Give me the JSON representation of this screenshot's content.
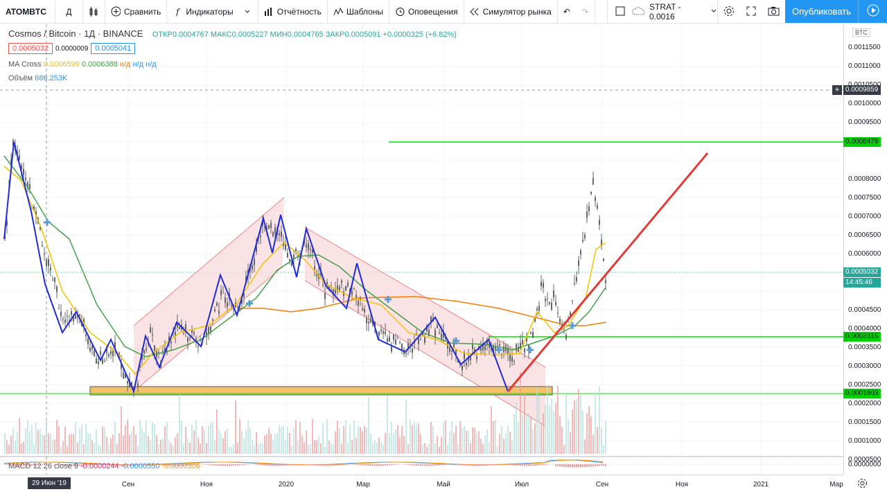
{
  "toolbar": {
    "symbol": "ATOMBTC",
    "interval": "Д",
    "compare": "Сравнить",
    "indicators": "Индикаторы",
    "financials": "Отчётность",
    "templates": "Шаблоны",
    "alerts": "Оповещения",
    "replay": "Симулятор рынка",
    "strategy": "STRAT - 0.0016",
    "publish": "Опубликовать"
  },
  "legend": {
    "title": "Cosmos / Bitcoin · 1Д · BINANCE",
    "ohlc": "ОТКР0.0004767 МАКС0.0005227 МИН0.0004765 ЗАКР0.0005091 +0.0000325 (+6.82%)",
    "bid": "0.0005032",
    "spread": "0.0000009",
    "ask": "0.0005041",
    "ma_name": "MA Cross",
    "ma_fast": "0.0006599",
    "ma_slow": "0.0006388",
    "na1": "н/д",
    "na2": "н/д",
    "na3": "н/д",
    "volume_name": "Объём",
    "volume_value": "686.253K",
    "macd_name": "MACD 12 26 close 9",
    "macd_hist": "-0.0000244",
    "macd_line": "-0.0000550",
    "macd_signal": "-0.0000306"
  },
  "price_scale": {
    "currency": "BTC",
    "ticks": [
      "0.0011500",
      "0.0011000",
      "0.0010500",
      "0.0010000",
      "0.0009500",
      "0.0009000",
      "0.0008000",
      "0.0007500",
      "0.0007000",
      "0.0006500",
      "0.0006000",
      "0.0005500",
      "0.0004500",
      "0.0004000",
      "0.0003500",
      "0.0003000",
      "0.0002500",
      "0.0002000",
      "0.0001500",
      "0.0001000",
      "0.0000500",
      "0.0000000"
    ],
    "crosshair": "0.0009859",
    "level_high": "0.0008479",
    "last_price": "0.0005032",
    "countdown": "14:45:46",
    "level_mid": "0.0003315",
    "level_low": "0.0001803"
  },
  "time_scale": {
    "highlight": "29 Июн '19",
    "ticks": [
      "Сен",
      "Ноя",
      "2020",
      "Мар",
      "Май",
      "Июл",
      "Сен",
      "Ноя",
      "2021",
      "Мар"
    ]
  },
  "colors": {
    "up": "#26a69a",
    "accent": "#2196f3",
    "trend": "#e53935",
    "level": "#00e600",
    "zone": "#f5c26b",
    "channel": "#f8d7da",
    "ma_fast": "#f5c000",
    "ma_slow": "#43a047",
    "ma_long": "#f57c00",
    "pattern": "#1e2bd6"
  }
}
